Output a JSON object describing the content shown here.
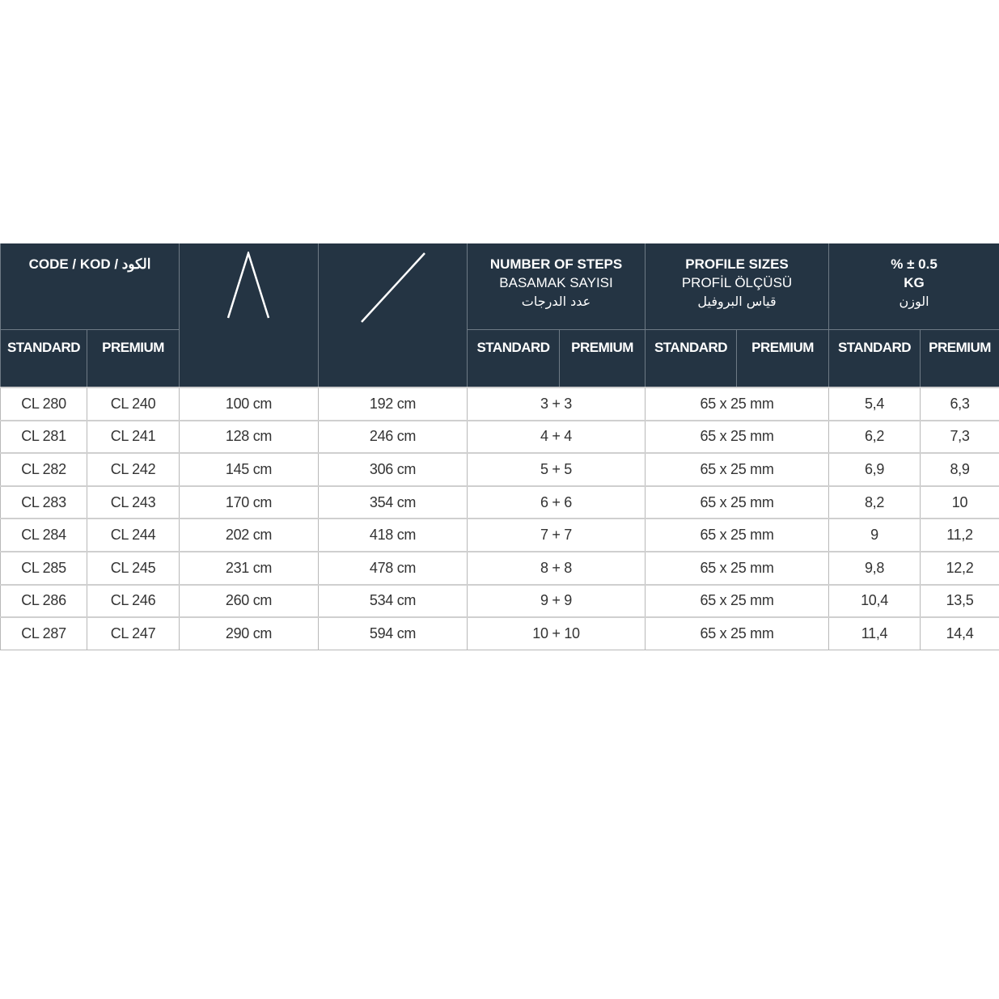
{
  "header": {
    "code": "CODE / KOD / الكود",
    "open_height_icon": "a-frame-ladder-icon",
    "extended_length_icon": "straight-ladder-icon",
    "steps": {
      "en": "NUMBER OF STEPS",
      "tr": "BASAMAK SAYISI",
      "ar": "عدد الدرجات"
    },
    "profile": {
      "en": "PROFILE SIZES",
      "tr": "PROFİL ÖLÇÜSÜ",
      "ar": "قياس البروفيل"
    },
    "weight": {
      "en": "% ± 0.5",
      "unit": "KG",
      "ar": "الوزن"
    },
    "standard": "STANDARD",
    "premium": "PREMIUM"
  },
  "rows": [
    [
      "CL 280",
      "CL 240",
      "100 cm",
      "192 cm",
      "3 + 3",
      "65 x 25 mm",
      "5,4",
      "6,3"
    ],
    [
      "CL 281",
      "CL 241",
      "128 cm",
      "246 cm",
      "4 + 4",
      "65 x 25 mm",
      "6,2",
      "7,3"
    ],
    [
      "CL 282",
      "CL 242",
      "145 cm",
      "306 cm",
      "5 + 5",
      "65 x 25 mm",
      "6,9",
      "8,9"
    ],
    [
      "CL 283",
      "CL 243",
      "170 cm",
      "354 cm",
      "6 + 6",
      "65 x 25 mm",
      "8,2",
      "10"
    ],
    [
      "CL 284",
      "CL 244",
      "202 cm",
      "418 cm",
      "7 + 7",
      "65 x 25 mm",
      "9",
      "11,2"
    ],
    [
      "CL 285",
      "CL 245",
      "231 cm",
      "478 cm",
      "8 + 8",
      "65 x 25 mm",
      "9,8",
      "12,2"
    ],
    [
      "CL 286",
      "CL 246",
      "260 cm",
      "534 cm",
      "9 + 9",
      "65 x 25 mm",
      "10,4",
      "13,5"
    ],
    [
      "CL 287",
      "CL 247",
      "290 cm",
      "594 cm",
      "10 + 10",
      "65 x 25 mm",
      "11,4",
      "14,4"
    ]
  ],
  "colors": {
    "header_bg": "#243443",
    "header_text": "#ffffff"
  }
}
